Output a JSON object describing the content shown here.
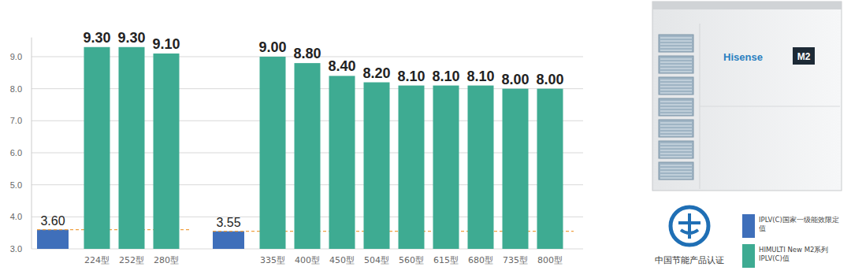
{
  "chart_data": {
    "type": "bar",
    "categories": [
      null,
      "224型",
      "252型",
      "280型",
      null,
      "335型",
      "400型",
      "450型",
      "504型",
      "560型",
      "615型",
      "680型",
      "735型",
      "800型"
    ],
    "series": [
      {
        "name": "IPLV(C)国家一级能效限定值",
        "color": "#3f6fba",
        "values": [
          3.6,
          null,
          null,
          null,
          3.55,
          null,
          null,
          null,
          null,
          null,
          null,
          null,
          null,
          null
        ],
        "value_labels": [
          "3.60",
          null,
          null,
          null,
          "3.55",
          null,
          null,
          null,
          null,
          null,
          null,
          null,
          null,
          null
        ]
      },
      {
        "name": "HIMULTI New M2系列IPLV(C)值",
        "color": "#3eab92",
        "values": [
          null,
          9.3,
          9.3,
          9.1,
          null,
          9,
          8.8,
          8.4,
          8.2,
          8.1,
          8.1,
          8.1,
          8,
          8
        ],
        "value_labels": [
          null,
          "9.30",
          "9.30",
          "9.10",
          null,
          "9.00",
          "8.80",
          "8.40",
          "8.20",
          "8.10",
          "8.10",
          "8.10",
          "8.00",
          "8.00"
        ]
      }
    ],
    "ylim": [
      3,
      9.6
    ],
    "yticks": [
      {
        "value": 3,
        "label": "3.0"
      },
      {
        "value": 4,
        "label": "4.0"
      },
      {
        "value": 5,
        "label": "5.0"
      },
      {
        "value": 6,
        "label": "6.0"
      },
      {
        "value": 7,
        "label": "7.0"
      },
      {
        "value": 8,
        "label": "8.0"
      },
      {
        "value": 9,
        "label": "9.0"
      }
    ],
    "grid": true,
    "data_labels": true,
    "legend": "lower right",
    "annotations": [
      "Hisense",
      "M2",
      "中国节能产品认证"
    ]
  }
}
